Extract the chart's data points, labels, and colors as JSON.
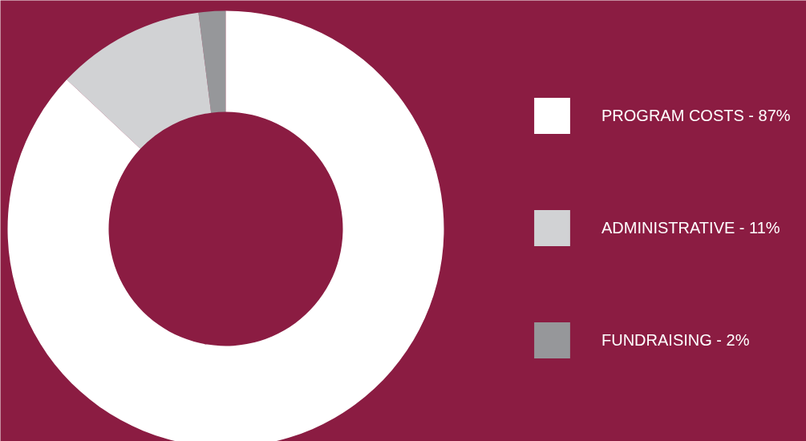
{
  "chart_data": {
    "type": "donut",
    "categories": [
      "PROGRAM COSTS - 87%",
      "ADMINISTRATIVE - 11%",
      "FUNDRAISING - 2%"
    ],
    "values": [
      87,
      11,
      2
    ],
    "colors": [
      "#ffffff",
      "#d1d2d4",
      "#96979a"
    ],
    "legend": "right"
  }
}
